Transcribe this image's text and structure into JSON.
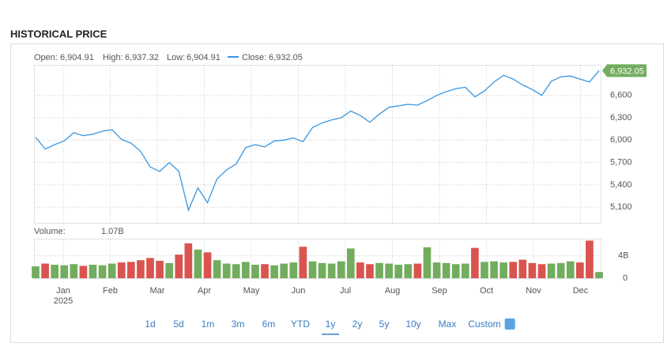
{
  "header": {
    "title": "HISTORICAL PRICE"
  },
  "ohlc": {
    "open_label": "Open:",
    "open": "6,904.91",
    "high_label": "High:",
    "high": "6,937.32",
    "low_label": "Low:",
    "low": "6,904.91",
    "close_label": "Close:",
    "close": "6,932.05"
  },
  "volume_info": {
    "label": "Volume:",
    "value": "1.07B"
  },
  "chart_data": {
    "type": "line",
    "color": "#3a96e0",
    "up_color": "#72ad5e",
    "down_color": "#d9534f",
    "x_labels": [
      "Jan",
      "Feb",
      "Mar",
      "Apr",
      "May",
      "Jun",
      "Jul",
      "Aug",
      "Sep",
      "Oct",
      "Nov",
      "Dec"
    ],
    "x_year": "2025",
    "values": [
      6040,
      5880,
      5940,
      5990,
      6100,
      6060,
      6080,
      6120,
      6140,
      6010,
      5960,
      5850,
      5640,
      5580,
      5700,
      5580,
      5060,
      5360,
      5160,
      5480,
      5600,
      5680,
      5900,
      5940,
      5910,
      5990,
      6000,
      6030,
      5980,
      6170,
      6230,
      6270,
      6300,
      6390,
      6330,
      6240,
      6350,
      6440,
      6460,
      6480,
      6470,
      6530,
      6600,
      6650,
      6690,
      6710,
      6580,
      6660,
      6780,
      6870,
      6820,
      6740,
      6680,
      6600,
      6790,
      6850,
      6860,
      6820,
      6780,
      6932.05
    ],
    "ylim": [
      4890,
      7000
    ],
    "yticks": [
      {
        "value": 5100,
        "label": "5,100"
      },
      {
        "value": 5400,
        "label": "5,400"
      },
      {
        "value": 5700,
        "label": "5,700"
      },
      {
        "value": 6000,
        "label": "6,000"
      },
      {
        "value": 6300,
        "label": "6,300"
      },
      {
        "value": 6600,
        "label": "6,600"
      }
    ],
    "grid": true,
    "volume": [
      2.1,
      2.6,
      2.4,
      2.3,
      2.5,
      2.2,
      2.4,
      2.3,
      2.6,
      2.8,
      2.9,
      3.2,
      3.6,
      3.1,
      2.7,
      4.2,
      6.2,
      5.1,
      4.6,
      3.2,
      2.6,
      2.5,
      2.9,
      2.4,
      2.5,
      2.3,
      2.6,
      2.8,
      5.6,
      3.0,
      2.7,
      2.6,
      3.0,
      5.3,
      2.8,
      2.5,
      2.7,
      2.6,
      2.4,
      2.5,
      2.6,
      5.5,
      2.8,
      2.7,
      2.5,
      2.6,
      5.4,
      2.9,
      3.0,
      2.8,
      2.9,
      3.3,
      2.7,
      2.5,
      2.6,
      2.7,
      3.0,
      2.8,
      6.7,
      1.1
    ],
    "vlim": [
      0,
      6.9
    ],
    "vticks": [
      0,
      {
        "value": 4,
        "label": "4B"
      }
    ]
  },
  "ranges": [
    "1d",
    "5d",
    "1m",
    "3m",
    "6m",
    "YTD",
    "1y",
    "2y",
    "5y",
    "10y",
    "Max",
    "Custom"
  ],
  "selected_range": 6
}
